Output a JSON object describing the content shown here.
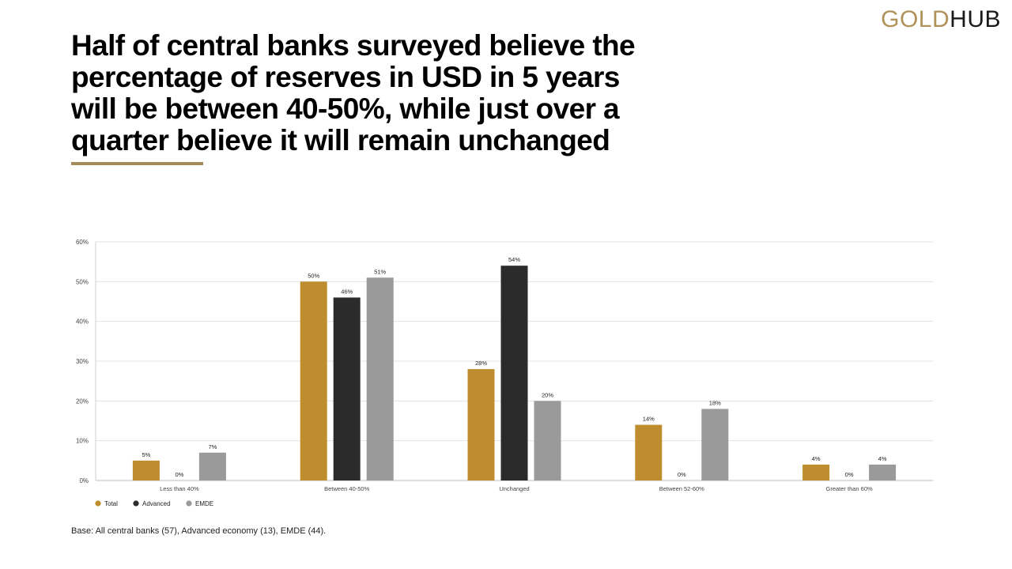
{
  "brand": {
    "logo_part1": "GOLD",
    "logo_part2": "HUB"
  },
  "headline": "Half of central banks surveyed believe the percentage of reserves in USD in 5 years will be between 40-50%, while just over a quarter believe it will remain unchanged",
  "footnote": "Base: All central banks (57), Advanced economy (13), EMDE (44).",
  "colors": {
    "total": "#be8e2e",
    "advanced": "#2b2b2b",
    "emde": "#9a9a9a",
    "accent_rule": "#a58b5a"
  },
  "chart_data": {
    "type": "bar",
    "categories": [
      "Less than 40%",
      "Between 40-50%",
      "Unchanged",
      "Between 52-60%",
      "Greater than 60%"
    ],
    "series": [
      {
        "name": "Total",
        "values": [
          5,
          50,
          28,
          14,
          4
        ],
        "labels": [
          "5%",
          "50%",
          "28%",
          "14%",
          "4%"
        ]
      },
      {
        "name": "Advanced",
        "values": [
          0,
          46,
          54,
          0,
          0
        ],
        "labels": [
          "0%",
          "46%",
          "54%",
          "0%",
          "0%"
        ]
      },
      {
        "name": "EMDE",
        "values": [
          7,
          51,
          20,
          18,
          4
        ],
        "labels": [
          "7%",
          "51%",
          "20%",
          "18%",
          "4%"
        ]
      }
    ],
    "ylim": [
      0,
      60
    ],
    "yticks": [
      "0%",
      "10%",
      "20%",
      "30%",
      "40%",
      "50%",
      "60%"
    ],
    "grid": true,
    "legend_position": "bottom-left"
  }
}
